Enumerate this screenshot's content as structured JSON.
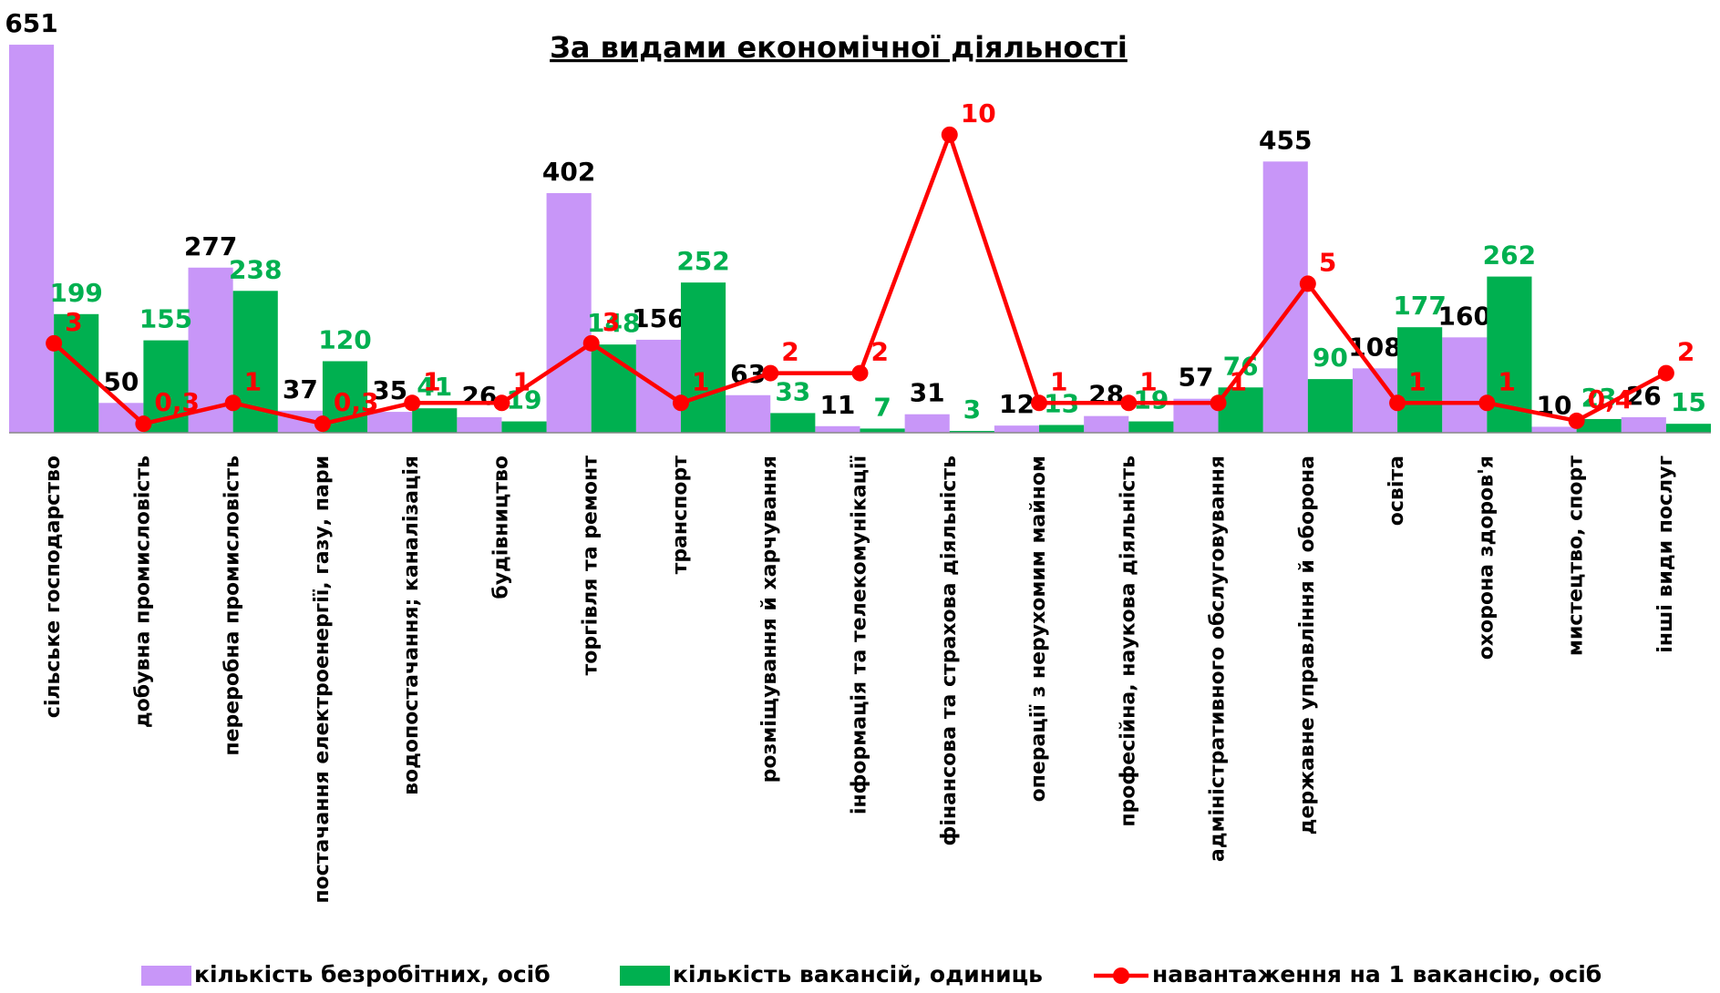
{
  "chart_data": {
    "type": "bar-line",
    "title": "За видами економічної діяльності",
    "categories": [
      "сільське господарство",
      "добувна промисловість",
      "переробна промисловість",
      "постачання електроенергії, газу, пари",
      "водопостачання; каналізація",
      "будівництво",
      "торгівля та ремонт",
      "транспорт",
      "розміщування й харчування",
      "інформація та телекомунікації",
      "фінансова та страхова діяльність",
      "операції з нерухомим майном",
      "професійна, наукова діяльність",
      "адміністративного  обслуговування",
      "державне управління й оборона",
      "освіта",
      "охорона здоров'я",
      "мистецтво, спорт",
      "інші види послуг"
    ],
    "series": [
      {
        "name": "кількість безробітних,  осіб",
        "color": "#c896f8",
        "type": "bar",
        "values": [
          651,
          50,
          277,
          37,
          35,
          26,
          402,
          156,
          63,
          11,
          31,
          12,
          28,
          57,
          455,
          108,
          160,
          10,
          26
        ]
      },
      {
        "name": "кількість вакансій, одиниць",
        "color": "#00b050",
        "type": "bar",
        "values": [
          199,
          155,
          238,
          120,
          41,
          19,
          148,
          252,
          33,
          7,
          3,
          13,
          19,
          76,
          90,
          177,
          262,
          23,
          15
        ]
      },
      {
        "name": "навантаження на 1 вакансію, осіб",
        "color": "#ff0000",
        "type": "line",
        "axis": "y2",
        "values": [
          3,
          0.3,
          1,
          0.3,
          1,
          1,
          3,
          1,
          2,
          2,
          10,
          1,
          1,
          1,
          5,
          1,
          1,
          0.4,
          2
        ],
        "value_labels": [
          "3",
          "0,3",
          "1",
          "0,3",
          "1",
          "1",
          "3",
          "1",
          "2",
          "2",
          "10",
          "1",
          "1",
          "1",
          "5",
          "1",
          "1",
          "0,4",
          "2"
        ]
      }
    ],
    "ylim": [
      0,
      700
    ],
    "y2lim": [
      0,
      14
    ],
    "legend": "bottom"
  }
}
